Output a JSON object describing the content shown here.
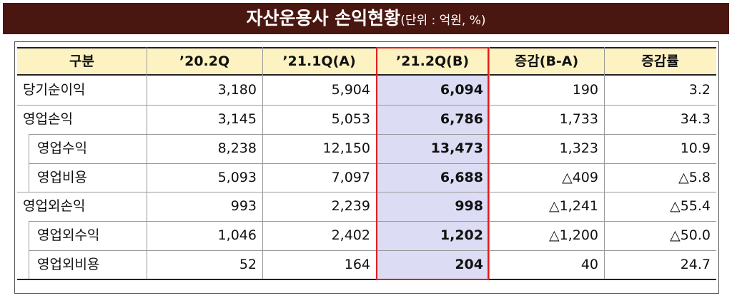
{
  "title": "자산운용사 손익현황",
  "unit": "(단위 : 억원, %)",
  "table": {
    "header": [
      "구분",
      "’20.2Q",
      "’21.1Q(A)",
      "’21.2Q(B)",
      "증감(B-A)",
      "증감률"
    ],
    "rows": [
      {
        "cells": [
          "당기순이익",
          "3,180",
          "5,904",
          "6,094",
          "190",
          "3.2"
        ],
        "children": []
      },
      {
        "cells": [
          "영업손익",
          "3,145",
          "5,053",
          "6,786",
          "1,733",
          "34.3"
        ],
        "children": [
          [
            "영업수익",
            "8,238",
            "12,150",
            "13,473",
            "1,323",
            "10.9"
          ],
          [
            "영업비용",
            "5,093",
            "7,097",
            "6,688",
            "△409",
            "△5.8"
          ]
        ]
      },
      {
        "cells": [
          "영업외손익",
          "993",
          "2,239",
          "998",
          "△1,241",
          "△55.4"
        ],
        "children": [
          [
            "영업외수익",
            "1,046",
            "2,402",
            "1,202",
            "△1,200",
            "△50.0"
          ],
          [
            "영업외비용",
            "52",
            "164",
            "204",
            "40",
            "24.7"
          ]
        ]
      }
    ]
  }
}
